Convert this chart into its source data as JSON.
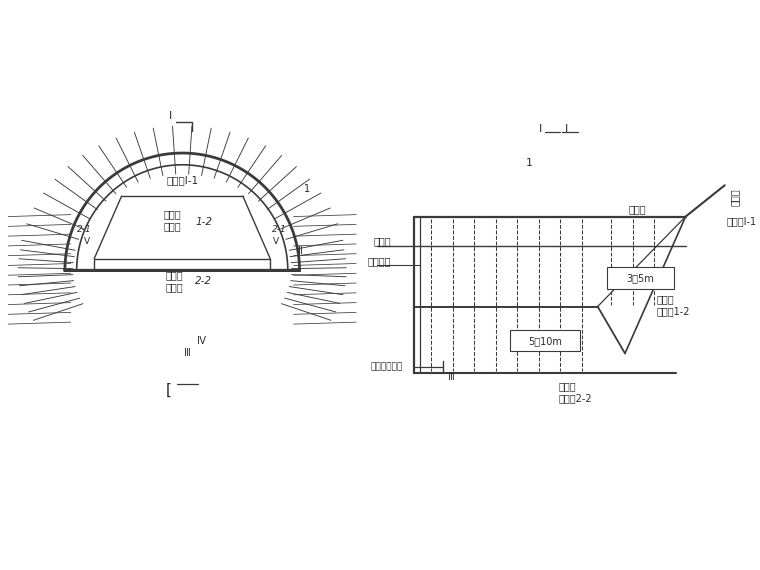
{
  "bg_color": "#ffffff",
  "line_color": "#3a3a3a",
  "text_color": "#2a2a2a",
  "fig_width": 7.6,
  "fig_height": 5.7,
  "left_diagram": {
    "labels": {
      "section1_1": "上台阶Ⅰ-1",
      "section1_2_top": "上台阶",
      "section1_2_mid": "核心土",
      "section1_2_num": "1-2",
      "section2_1_left": "2-1",
      "section2_1_V_left": "V",
      "section2_2_top": "下台阶",
      "section2_2_mid": "核心土",
      "section2_2_num": "2-2",
      "section2_1_right": "2-1",
      "section2_1_V_right": "V",
      "marker_II": "Ⅱ",
      "marker_IV": "Ⅳ",
      "marker_III": "Ⅲ",
      "top_ref": "1"
    }
  },
  "right_diagram": {
    "labels": {
      "ref_1": "1",
      "gang_jia": "钉拱架",
      "chu_qi_zhicheng": "初期支护",
      "shang_taijie_top": "上台阶",
      "dim_35": "3～5m",
      "shang_taijie2": "上台阶",
      "hexin_12": "核心土1-2",
      "dim_510": "5～10m",
      "xia_taijie": "下台阶",
      "hexin_22": "核心土2-2",
      "shen_chu": "伸缩初期支护",
      "marker_III": "Ⅲ",
      "shang_taijie_right": "上台阶Ⅰ-1",
      "zheng_mian": "推子面"
    }
  }
}
